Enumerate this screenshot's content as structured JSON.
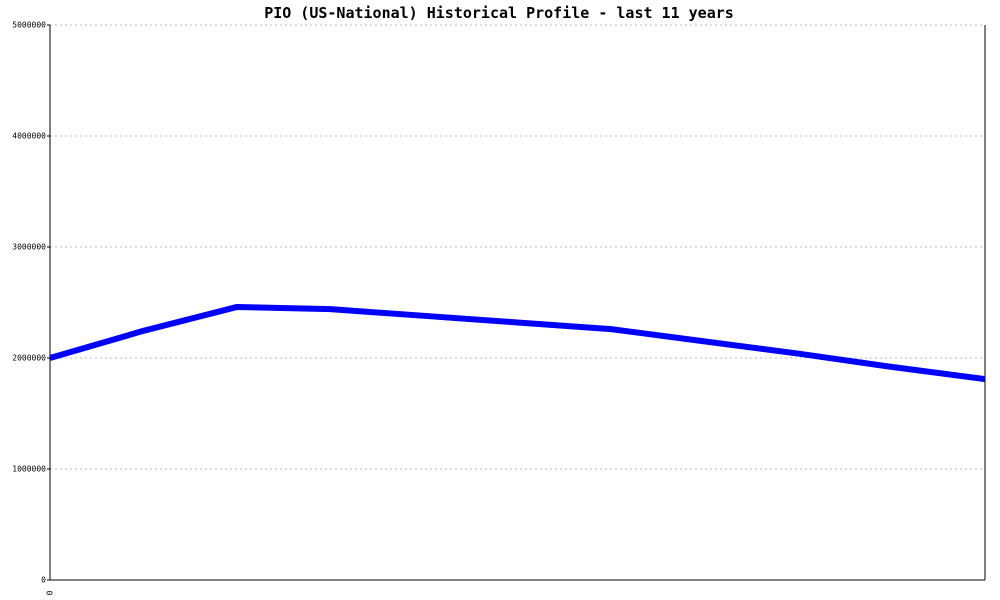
{
  "chart_data": {
    "type": "line",
    "title": "PIO (US-National) Historical Profile - last 11 years",
    "categories": [
      "0",
      null,
      null,
      null,
      null,
      null,
      null,
      null,
      null,
      null,
      null
    ],
    "series": [
      {
        "color": "#0000ff",
        "values": [
          2000000,
          2245000,
          2460000,
          2440000,
          2380000,
          2320000,
          2260000,
          2150000,
          2040000,
          1920000,
          1810000
        ]
      }
    ],
    "ylim": [
      0,
      5000000
    ],
    "yticks": [
      0,
      1000000,
      2000000,
      3000000,
      4000000,
      5000000
    ],
    "grid": true
  }
}
